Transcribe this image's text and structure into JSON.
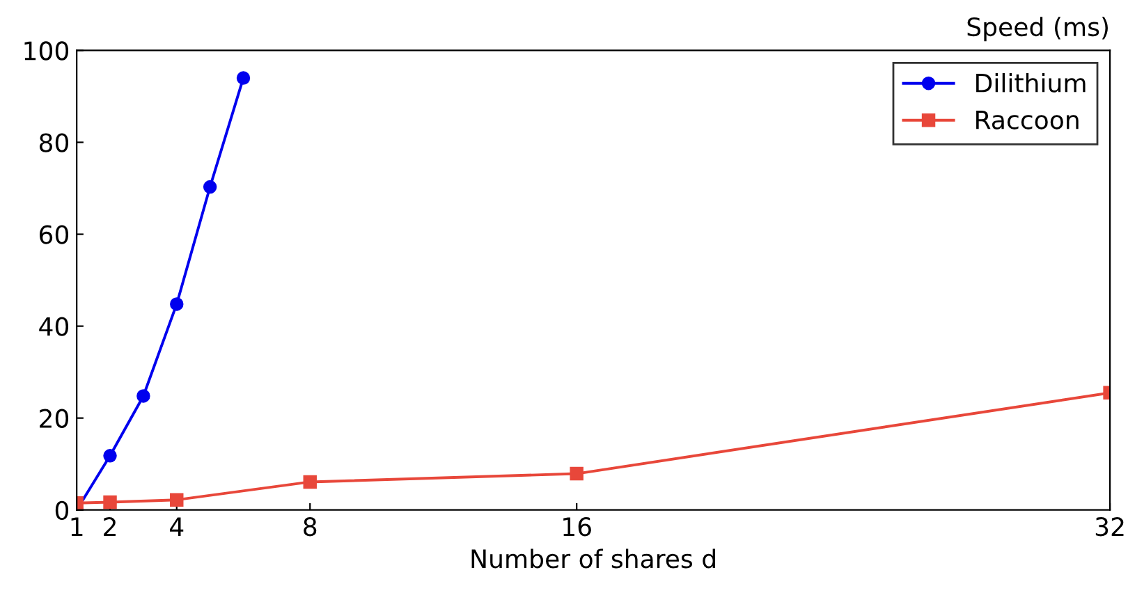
{
  "chart_data": {
    "type": "line",
    "xlabel": "Number of shares d",
    "ylabel": "Speed (ms)",
    "xlim": [
      1,
      32
    ],
    "ylim": [
      0,
      100
    ],
    "xticks": [
      1,
      2,
      4,
      8,
      16,
      32
    ],
    "yticks": [
      0,
      20,
      40,
      60,
      80,
      100
    ],
    "grid": false,
    "legend": "top right",
    "series": [
      {
        "name": "Dilithium",
        "color": "#0000ee",
        "marker": "circle",
        "x": [
          1,
          2,
          3,
          4,
          5,
          6
        ],
        "values": [
          0,
          11.8,
          24.8,
          44.8,
          70.3,
          94
        ]
      },
      {
        "name": "Raccoon",
        "color": "#e8473a",
        "marker": "square",
        "x": [
          1,
          2,
          4,
          8,
          16,
          32
        ],
        "values": [
          1.5,
          1.7,
          2.2,
          6.1,
          7.9,
          25.5
        ]
      }
    ]
  }
}
